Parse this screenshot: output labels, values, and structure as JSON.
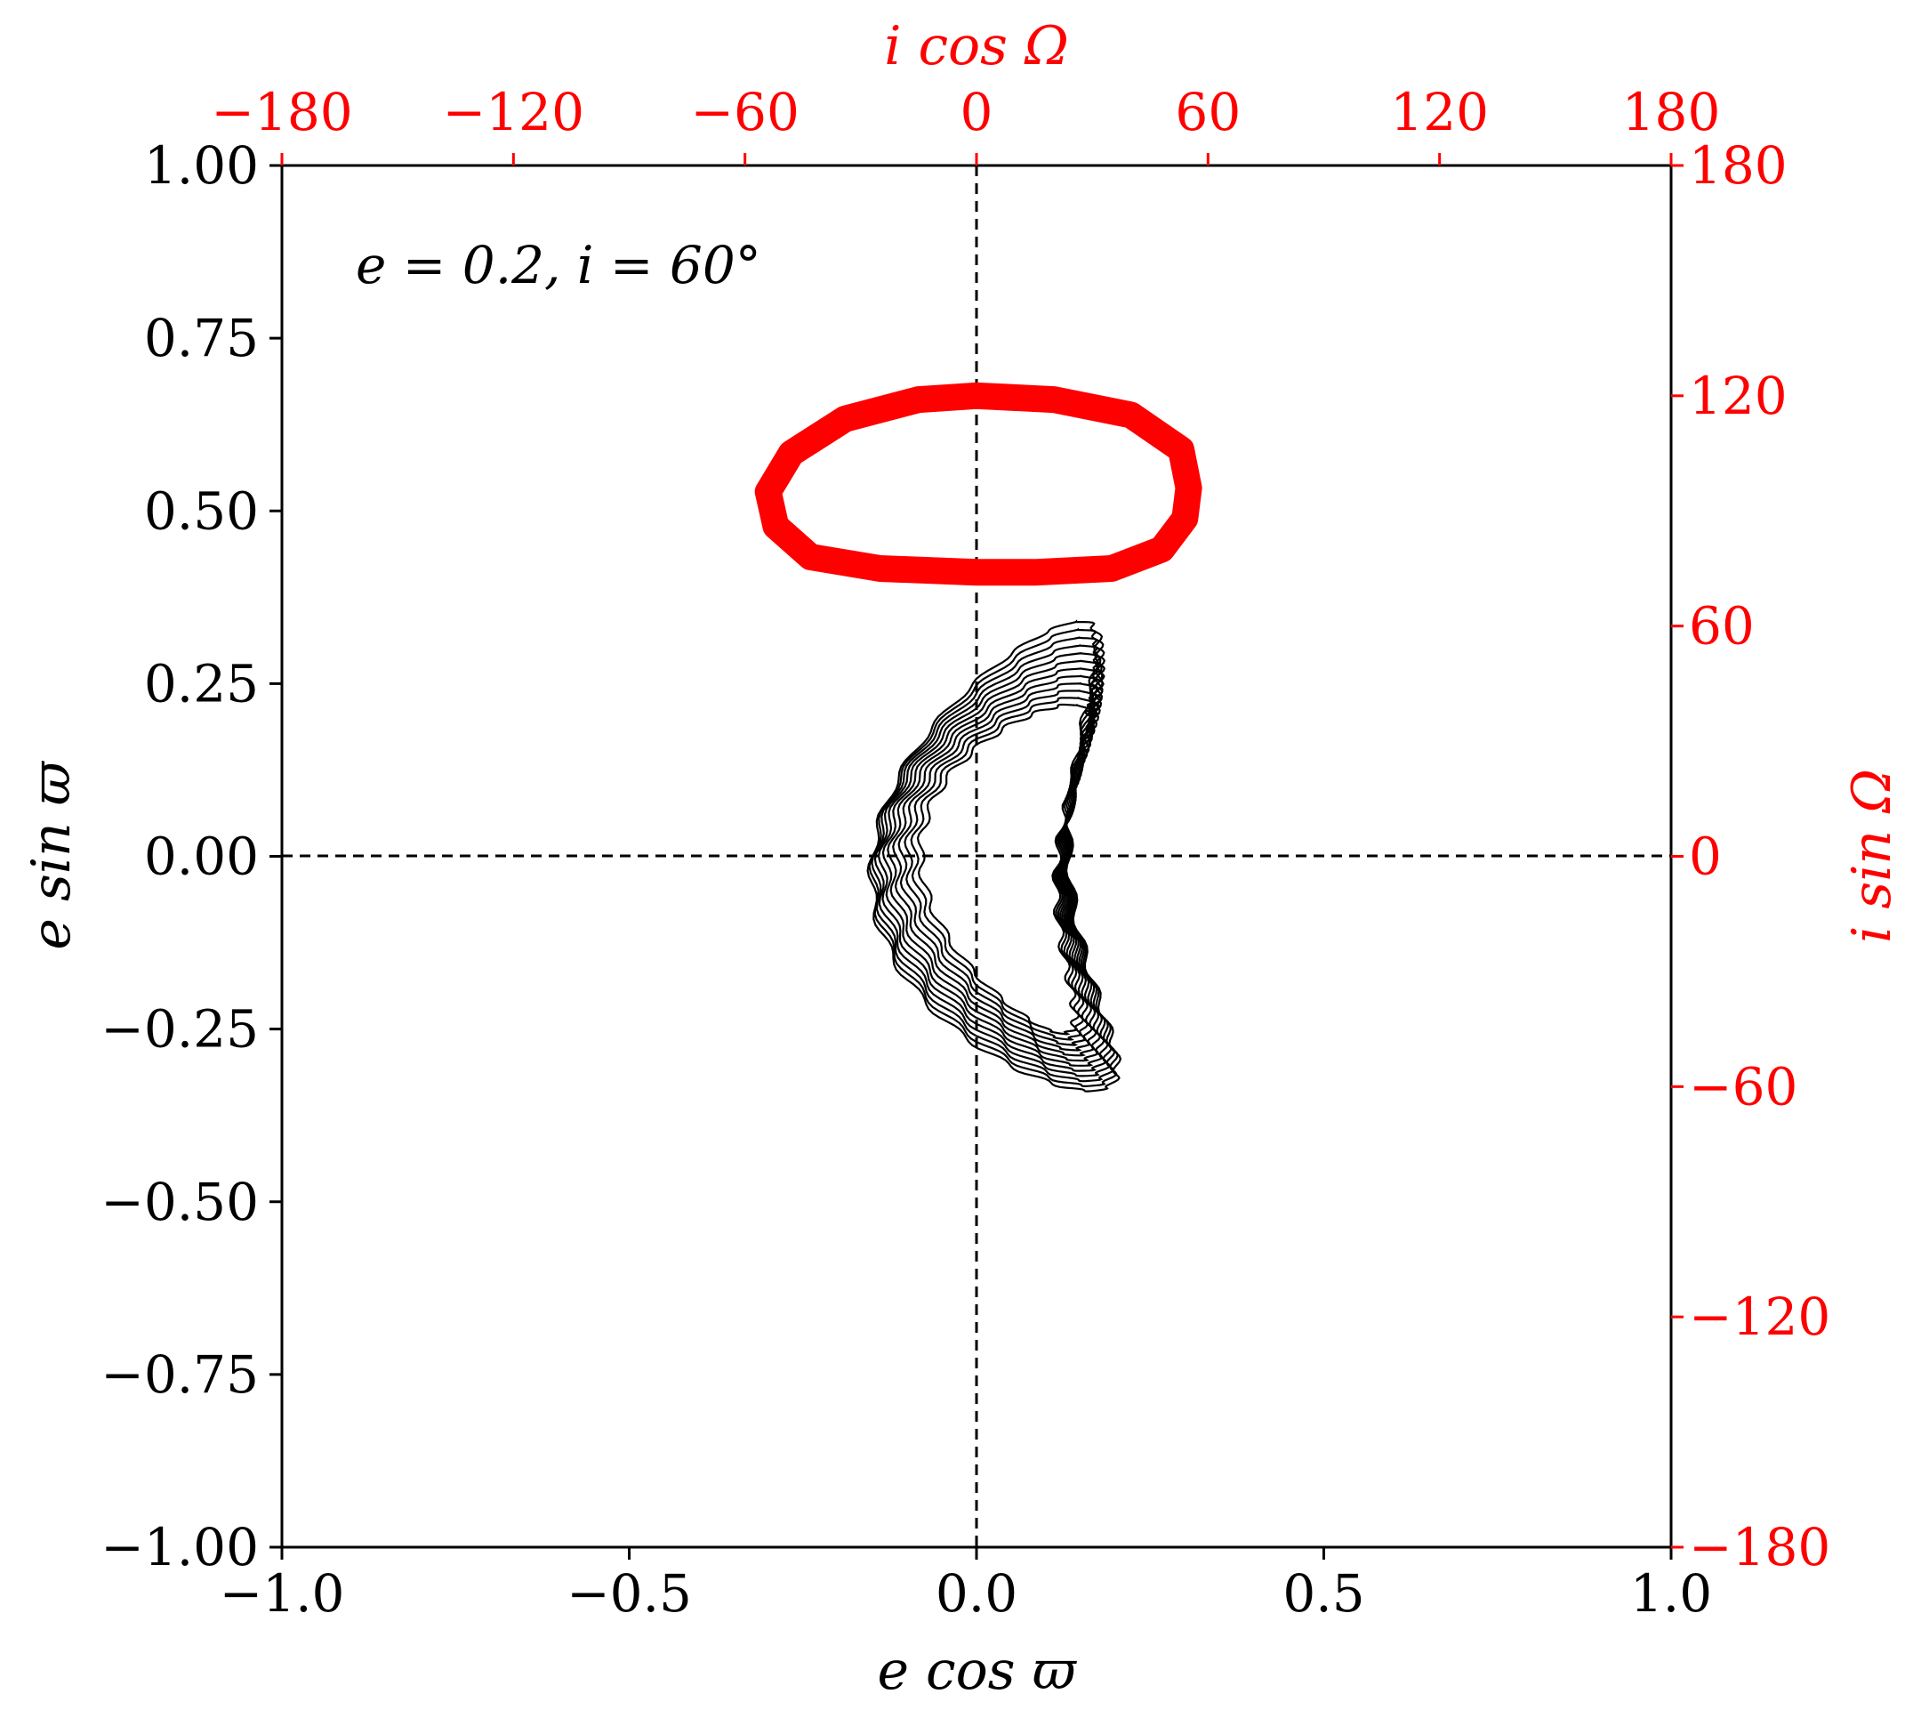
{
  "chart_data": {
    "type": "scatter",
    "annotation": "e = 0.2,  i = 60°",
    "axes": {
      "bottom": {
        "label": "e cos ϖ",
        "lim": [
          -1.0,
          1.0
        ],
        "ticks": [
          -1.0,
          -0.5,
          0.0,
          0.5,
          1.0
        ],
        "tick_labels": [
          "−1.0",
          "−0.5",
          "0.0",
          "0.5",
          "1.0"
        ],
        "color": "#000000"
      },
      "left": {
        "label": "e sin ϖ",
        "lim": [
          -1.0,
          1.0
        ],
        "ticks": [
          -1.0,
          -0.75,
          -0.5,
          -0.25,
          0.0,
          0.25,
          0.5,
          0.75,
          1.0
        ],
        "tick_labels": [
          "−1.00",
          "−0.75",
          "−0.50",
          "−0.25",
          "0.00",
          "0.25",
          "0.50",
          "0.75",
          "1.00"
        ],
        "color": "#000000"
      },
      "top": {
        "label": "i cos Ω",
        "lim": [
          -180,
          180
        ],
        "ticks": [
          -180,
          -120,
          -60,
          0,
          60,
          120,
          180
        ],
        "tick_labels": [
          "−180",
          "−120",
          "−60",
          "0",
          "60",
          "120",
          "180"
        ],
        "color": "#ff0000"
      },
      "right": {
        "label": "i sin Ω",
        "lim": [
          -180,
          180
        ],
        "ticks": [
          -180,
          -120,
          -60,
          0,
          60,
          120,
          180
        ],
        "tick_labels": [
          "−180",
          "−120",
          "−60",
          "0",
          "60",
          "120",
          "180"
        ],
        "color": "#ff0000"
      }
    },
    "reference_lines": {
      "x": 0,
      "y": 0,
      "style": "dashed"
    },
    "grid": false,
    "series": [
      {
        "axes": "bottom-left",
        "color": "#000000",
        "description_points": {
          "orbit_center": [
            0.08,
            -0.01
          ],
          "x_range": [
            -0.2,
            0.28
          ],
          "y_range": [
            -0.35,
            0.33
          ]
        }
      },
      {
        "axes": "top-right",
        "color": "#ff0000",
        "points": [
          [
            0,
            120
          ],
          [
            20,
            119
          ],
          [
            40,
            115
          ],
          [
            53,
            106
          ],
          [
            55,
            96
          ],
          [
            54,
            88
          ],
          [
            48,
            80
          ],
          [
            35,
            75
          ],
          [
            15,
            74
          ],
          [
            0,
            74
          ],
          [
            -25,
            75
          ],
          [
            -43,
            78
          ],
          [
            -52,
            86
          ],
          [
            -54,
            95
          ],
          [
            -48,
            105
          ],
          [
            -34,
            114
          ],
          [
            -15,
            119
          ],
          [
            0,
            120
          ]
        ]
      }
    ]
  }
}
